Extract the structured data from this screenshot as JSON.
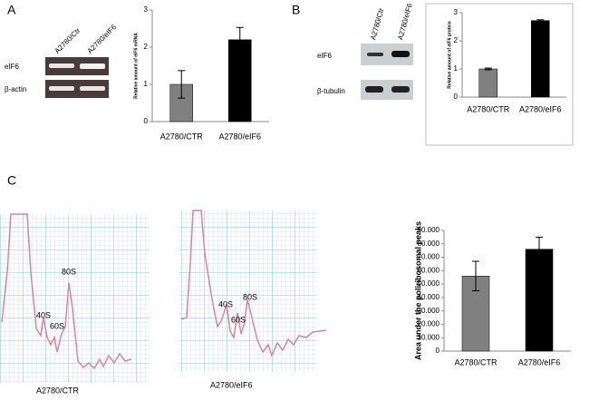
{
  "panel_labels": [
    "A",
    "B",
    "C"
  ],
  "gels": [
    {
      "columns": [
        "A2780/Ctr",
        "A2780/eIF6"
      ],
      "rows": [
        "eIF6",
        "β-actin"
      ]
    },
    {
      "columns": [
        "A2780/Ctr",
        "A2780/eIF6"
      ],
      "rows": [
        "eIF6",
        "β-tubulin"
      ]
    }
  ],
  "traces": [
    {
      "caption": "A2780/CTR",
      "peaks": [
        "40S",
        "60S",
        "80S"
      ]
    },
    {
      "caption": "A2780/eIF6",
      "peaks": [
        "40S",
        "80S",
        "60S"
      ]
    }
  ],
  "chart_data": [
    {
      "type": "bar",
      "y_label": "Relative amount of eIF6 mRNA",
      "categories": [
        "A2780/CTR",
        "A2780/eIF6"
      ],
      "values": [
        1.0,
        2.2
      ],
      "errors": [
        0.37,
        0.33
      ],
      "colors": [
        "#808080",
        "#000000"
      ],
      "ylim": [
        0,
        3
      ],
      "yticks": [
        0,
        1,
        2,
        3
      ]
    },
    {
      "type": "bar",
      "y_label": "Relative amount of eIF6 protein",
      "categories": [
        "A2780/CTR",
        "A2780/eIF6"
      ],
      "values": [
        1.0,
        2.72
      ],
      "errors": [
        0.03,
        0.03
      ],
      "colors": [
        "#808080",
        "#000000"
      ],
      "ylim": [
        0,
        3
      ],
      "yticks": [
        0,
        1,
        2,
        3
      ]
    },
    {
      "type": "bar",
      "y_label": "Area under the poliribosomal peaks",
      "categories": [
        "A2780/CTR",
        "A2780/eIF6"
      ],
      "values": [
        56000,
        76000
      ],
      "errors": [
        11000,
        9000
      ],
      "colors": [
        "#808080",
        "#000000"
      ],
      "ylim": [
        0,
        90000
      ],
      "yticks": [
        0,
        {
          "value": 10000,
          "label": "10.000"
        },
        {
          "value": 20000,
          "label": "20.000"
        },
        {
          "value": 30000,
          "label": "30.000"
        },
        {
          "value": 40000,
          "label": "40.000"
        },
        {
          "value": 50000,
          "label": "50.000"
        },
        {
          "value": 60000,
          "label": "60.000"
        },
        {
          "value": 70000,
          "label": "70.000"
        },
        {
          "value": 80000,
          "label": "80.000"
        },
        {
          "value": 90000,
          "label": "90.000"
        }
      ]
    }
  ]
}
